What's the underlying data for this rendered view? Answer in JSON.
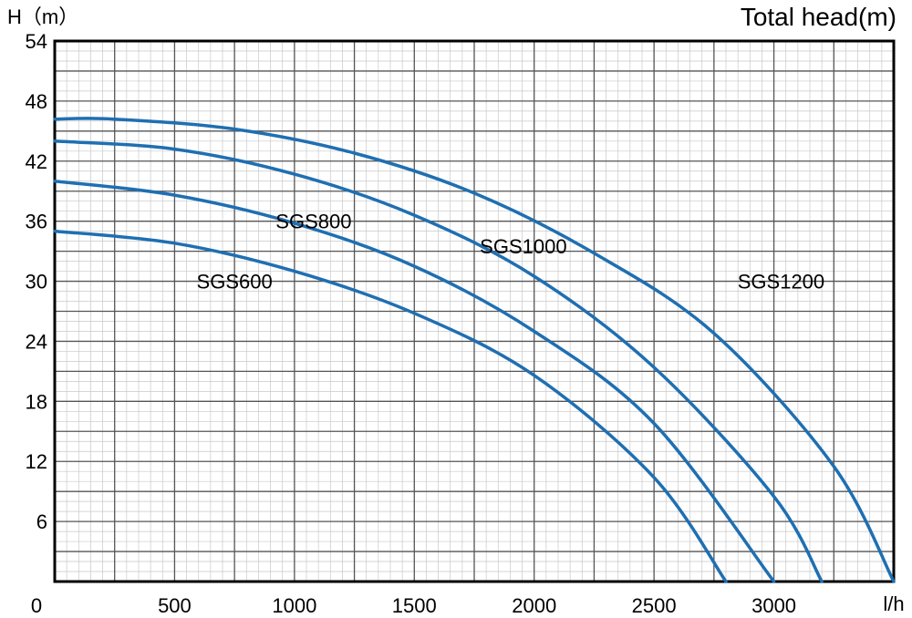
{
  "chart_data": {
    "type": "line",
    "y_label_left": "H（m）",
    "y_label_right": "Total head(m)",
    "x_unit": "l/h",
    "x_ticks": [
      {
        "value": 0,
        "label": "0"
      },
      {
        "value": 500,
        "label": "500"
      },
      {
        "value": 1000,
        "label": "1000"
      },
      {
        "value": 1500,
        "label": "1500"
      },
      {
        "value": 2000,
        "label": "2000"
      },
      {
        "value": 2500,
        "label": "2500"
      },
      {
        "value": 3000,
        "label": "3000"
      }
    ],
    "y_ticks": [
      {
        "value": 6,
        "label": "6"
      },
      {
        "value": 12,
        "label": "12"
      },
      {
        "value": 18,
        "label": "18"
      },
      {
        "value": 24,
        "label": "24"
      },
      {
        "value": 30,
        "label": "30"
      },
      {
        "value": 36,
        "label": "36"
      },
      {
        "value": 42,
        "label": "42"
      },
      {
        "value": 48,
        "label": "48"
      },
      {
        "value": 54,
        "label": "54"
      }
    ],
    "xlim": [
      0,
      3500
    ],
    "ylim": [
      0,
      54
    ],
    "grid": true,
    "line_color": "#1f6fb2",
    "series": [
      {
        "name": "SGS600",
        "label_at": [
          750,
          30
        ],
        "points": [
          [
            0,
            35
          ],
          [
            500,
            33.8
          ],
          [
            1000,
            31
          ],
          [
            1500,
            26.8
          ],
          [
            2000,
            20.6
          ],
          [
            2500,
            10.4
          ],
          [
            2800,
            0
          ]
        ]
      },
      {
        "name": "SGS800",
        "label_at": [
          1080,
          36
        ],
        "points": [
          [
            0,
            40
          ],
          [
            500,
            38.6
          ],
          [
            1000,
            35.8
          ],
          [
            1500,
            31.5
          ],
          [
            2000,
            25
          ],
          [
            2500,
            15.8
          ],
          [
            3000,
            0
          ]
        ]
      },
      {
        "name": "SGS1000",
        "label_at": [
          1955,
          33.5
        ],
        "points": [
          [
            0,
            44
          ],
          [
            500,
            43.2
          ],
          [
            1000,
            40.7
          ],
          [
            1500,
            36.6
          ],
          [
            2000,
            30.5
          ],
          [
            2500,
            21.4
          ],
          [
            3000,
            8.5
          ],
          [
            3200,
            0
          ]
        ]
      },
      {
        "name": "SGS1200",
        "label_at": [
          3030,
          30
        ],
        "points": [
          [
            0,
            46.2
          ],
          [
            250,
            46.2
          ],
          [
            750,
            45.2
          ],
          [
            1250,
            42.8
          ],
          [
            1750,
            38.8
          ],
          [
            2250,
            32.8
          ],
          [
            2750,
            24.8
          ],
          [
            3250,
            11.5
          ],
          [
            3500,
            0
          ]
        ]
      }
    ]
  }
}
